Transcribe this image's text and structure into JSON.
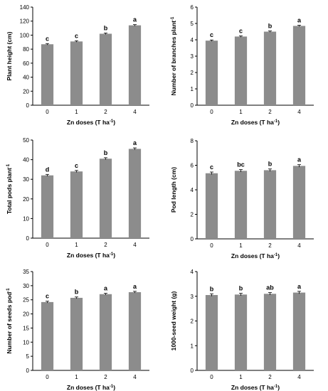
{
  "figure": {
    "panel_count": 6
  },
  "chart_data": [
    {
      "type": "bar",
      "categories": [
        "0",
        "1",
        "2",
        "4"
      ],
      "values": [
        87,
        91,
        102,
        114
      ],
      "errors": [
        1,
        1,
        1,
        1
      ],
      "letters": [
        "c",
        "c",
        "b",
        "a"
      ],
      "xlabel": "Zn doses (T ha",
      "xlabel_sup": "-1",
      "xlabel_close": ")",
      "ylabel": "Plant height (cm)",
      "ylabel_sup": "",
      "ylim": [
        0,
        140
      ],
      "yticks": [
        "0",
        "20",
        "40",
        "60",
        "80",
        "100",
        "120",
        "140"
      ],
      "grid": false
    },
    {
      "type": "bar",
      "categories": [
        "0",
        "1",
        "2",
        "4"
      ],
      "values": [
        3.95,
        4.2,
        4.5,
        4.85
      ],
      "errors": [
        0.04,
        0.04,
        0.04,
        0.04
      ],
      "letters": [
        "c",
        "c",
        "b",
        "a"
      ],
      "xlabel": "Zn doses (T ha",
      "xlabel_sup": "-1",
      "xlabel_close": ")",
      "ylabel": "Number of branches plant",
      "ylabel_sup": "-1",
      "ylim": [
        0,
        6
      ],
      "yticks": [
        "0",
        "1",
        "2",
        "3",
        "4",
        "5",
        "6"
      ],
      "grid": false
    },
    {
      "type": "bar",
      "categories": [
        "0",
        "1",
        "2",
        "4"
      ],
      "values": [
        32,
        34,
        40.5,
        45.5
      ],
      "errors": [
        0.5,
        0.5,
        0.5,
        0.5
      ],
      "letters": [
        "d",
        "c",
        "b",
        "a"
      ],
      "xlabel": "Zn doses (T ha",
      "xlabel_sup": "-1",
      "xlabel_close": ")",
      "ylabel": "Total pods plant",
      "ylabel_sup": "-1",
      "ylim": [
        0,
        50
      ],
      "yticks": [
        "0",
        "10",
        "20",
        "30",
        "40",
        "50"
      ],
      "grid": false
    },
    {
      "type": "bar",
      "categories": [
        "0",
        "1",
        "2",
        "4"
      ],
      "values": [
        5.35,
        5.55,
        5.6,
        5.95
      ],
      "errors": [
        0.1,
        0.1,
        0.1,
        0.1
      ],
      "letters": [
        "c",
        "bc",
        "b",
        "a"
      ],
      "xlabel": "Zn doses (T ha",
      "xlabel_sup": "-1",
      "xlabel_close": ")",
      "ylabel": "Pod length (cm)",
      "ylabel_sup": "",
      "ylim": [
        0,
        8
      ],
      "yticks": [
        "0",
        "2",
        "4",
        "6",
        "8"
      ],
      "grid": false
    },
    {
      "type": "bar",
      "categories": [
        "0",
        "1",
        "2",
        "4"
      ],
      "values": [
        24.2,
        25.7,
        27,
        27.7
      ],
      "errors": [
        0.3,
        0.3,
        0.3,
        0.3
      ],
      "letters": [
        "c",
        "b",
        "a",
        "a"
      ],
      "xlabel": "Zn doses (T ha",
      "xlabel_sup": "-1",
      "xlabel_close": ")",
      "ylabel": "Number of seeds pod",
      "ylabel_sup": "-1",
      "ylim": [
        0,
        35
      ],
      "yticks": [
        "0",
        "5",
        "10",
        "15",
        "20",
        "25",
        "30",
        "35"
      ],
      "grid": false
    },
    {
      "type": "bar",
      "categories": [
        "0",
        "1",
        "2",
        "4"
      ],
      "values": [
        3.05,
        3.07,
        3.1,
        3.15
      ],
      "errors": [
        0.05,
        0.05,
        0.05,
        0.05
      ],
      "letters": [
        "b",
        "b",
        "ab",
        "a"
      ],
      "xlabel": "Zn doses (T ha",
      "xlabel_sup": "-1",
      "xlabel_close": ")",
      "ylabel": "1000-seed weight (g)",
      "ylabel_sup": "",
      "ylim": [
        0,
        4
      ],
      "yticks": [
        "0",
        "1",
        "2",
        "3",
        "4"
      ],
      "grid": false
    }
  ]
}
